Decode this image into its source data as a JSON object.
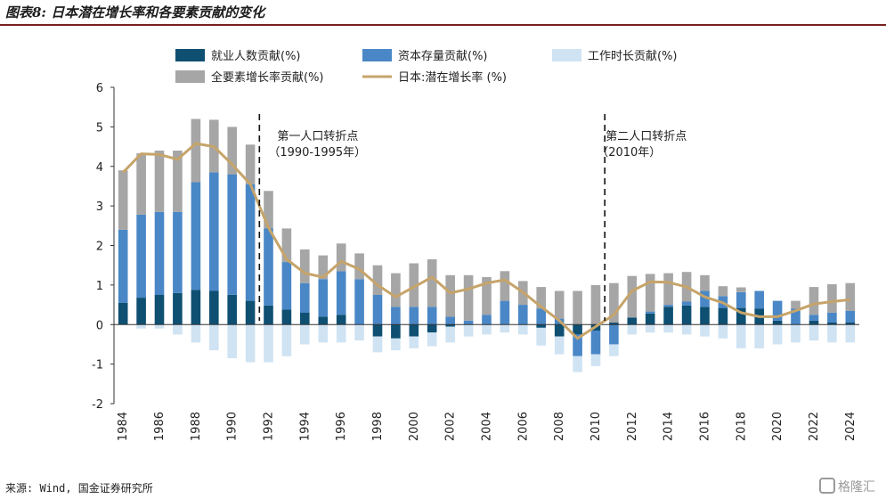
{
  "title": "图表8: 日本潜在增长率和各要素贡献的变化",
  "source": "来源: Wind, 国金证券研究所",
  "watermark": "格隆汇",
  "colors": {
    "employment": "#0e4f72",
    "capital": "#4a87c6",
    "hours": "#cfe3f3",
    "tfp": "#a6a6a6",
    "line": "#c6a46a",
    "rule": "#7a1f1f"
  },
  "chart_data": {
    "type": "bar",
    "stacked": true,
    "ylim": [
      -2,
      6
    ],
    "yticks": [
      "6",
      "5",
      "4",
      "3",
      "2",
      "1",
      "0",
      "-1",
      "-2"
    ],
    "xtick_labels": [
      "1984",
      "1986",
      "1988",
      "1990",
      "1992",
      "1994",
      "1996",
      "1998",
      "2000",
      "2002",
      "2004",
      "2006",
      "2008",
      "2010",
      "2012",
      "2014",
      "2016",
      "2018",
      "2020",
      "2022",
      "2024"
    ],
    "x": [
      1984,
      1985,
      1986,
      1987,
      1988,
      1989,
      1990,
      1991,
      1992,
      1993,
      1994,
      1995,
      1996,
      1997,
      1998,
      1999,
      2000,
      2001,
      2002,
      2003,
      2004,
      2005,
      2006,
      2007,
      2008,
      2009,
      2010,
      2011,
      2012,
      2013,
      2014,
      2015,
      2016,
      2017,
      2018,
      2019,
      2020,
      2021,
      2022,
      2023,
      2024
    ],
    "series": [
      {
        "name": "就业人数贡献(%)",
        "kind": "bar",
        "color_key": "employment",
        "values": [
          0.55,
          0.68,
          0.75,
          0.8,
          0.88,
          0.85,
          0.75,
          0.6,
          0.48,
          0.38,
          0.3,
          0.2,
          0.25,
          0.0,
          -0.3,
          -0.35,
          -0.3,
          -0.2,
          -0.05,
          0.0,
          0.0,
          0.0,
          0.0,
          -0.08,
          -0.3,
          -0.25,
          -0.15,
          0.05,
          0.18,
          0.28,
          0.45,
          0.48,
          0.45,
          0.42,
          0.42,
          0.4,
          0.1,
          0.0,
          0.1,
          0.05,
          0.05
        ]
      },
      {
        "name": "资本存量贡献(%)",
        "kind": "bar",
        "color_key": "capital",
        "values": [
          1.85,
          2.1,
          2.1,
          2.05,
          2.72,
          3.0,
          3.05,
          2.95,
          1.95,
          1.2,
          0.75,
          0.95,
          1.1,
          1.15,
          0.75,
          0.45,
          0.45,
          0.45,
          0.2,
          0.1,
          0.25,
          0.6,
          0.5,
          0.4,
          0.15,
          -0.55,
          -0.6,
          -0.5,
          0.0,
          0.05,
          0.05,
          0.1,
          0.4,
          0.3,
          0.4,
          0.45,
          0.5,
          0.4,
          0.15,
          0.25,
          0.3
        ]
      },
      {
        "name": "工作时长贡献(%)",
        "kind": "bar",
        "color_key": "hours",
        "values": [
          0.0,
          -0.1,
          -0.1,
          -0.25,
          -0.45,
          -0.65,
          -0.85,
          -0.95,
          -0.95,
          -0.8,
          -0.5,
          -0.45,
          -0.45,
          -0.4,
          -0.4,
          -0.3,
          -0.3,
          -0.35,
          -0.4,
          -0.3,
          -0.25,
          -0.2,
          -0.25,
          -0.45,
          -0.45,
          -0.4,
          -0.3,
          -0.3,
          -0.25,
          -0.2,
          -0.2,
          -0.25,
          -0.3,
          -0.35,
          -0.6,
          -0.6,
          -0.5,
          -0.45,
          -0.4,
          -0.45,
          -0.45
        ]
      },
      {
        "name": "全要素增长率贡献(%)",
        "kind": "bar",
        "color_key": "tfp",
        "values": [
          1.5,
          1.55,
          1.55,
          1.55,
          1.6,
          1.33,
          1.2,
          1.0,
          0.95,
          0.85,
          0.85,
          0.6,
          0.7,
          0.65,
          0.75,
          0.85,
          1.1,
          1.2,
          1.05,
          1.15,
          0.95,
          0.75,
          0.6,
          0.55,
          0.7,
          0.85,
          1.0,
          1.0,
          1.05,
          0.95,
          0.8,
          0.75,
          0.4,
          0.25,
          0.12,
          0.0,
          0.0,
          0.2,
          0.7,
          0.72,
          0.7
        ]
      },
      {
        "name": "日本:潜在增长率 (%)",
        "kind": "line",
        "color_key": "line",
        "values": [
          3.85,
          4.32,
          4.3,
          4.18,
          4.58,
          4.5,
          4.05,
          3.55,
          2.45,
          1.65,
          1.3,
          1.2,
          1.6,
          1.4,
          1.0,
          0.7,
          0.95,
          1.2,
          0.8,
          0.9,
          1.05,
          1.13,
          0.82,
          0.45,
          0.1,
          -0.35,
          -0.05,
          0.25,
          0.85,
          1.08,
          1.07,
          0.95,
          0.7,
          0.55,
          0.3,
          0.2,
          0.2,
          0.35,
          0.52,
          0.58,
          0.63
        ]
      }
    ],
    "annotations": [
      {
        "text": "第一人口转折点",
        "subtext": "（1990-1995年）",
        "year": 1991.5
      },
      {
        "text": "第二人口转折点",
        "subtext": "（2010年）",
        "year": 2010.5
      }
    ]
  }
}
